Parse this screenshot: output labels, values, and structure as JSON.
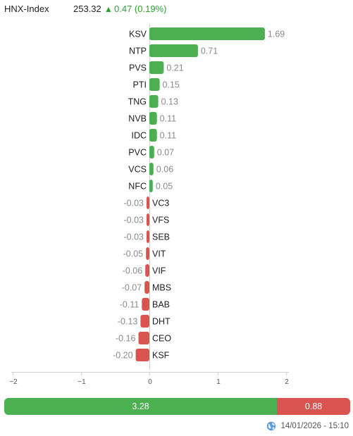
{
  "header": {
    "index_name": "HNX-Index",
    "index_value": "253.32",
    "arrow": "▲",
    "change": "0.47 (0.19%)"
  },
  "colors": {
    "positive": "#4caf50",
    "negative": "#d9534f"
  },
  "chart_data": {
    "type": "bar",
    "orientation": "horizontal",
    "categories": [
      "KSV",
      "NTP",
      "PVS",
      "PTI",
      "TNG",
      "NVB",
      "IDC",
      "PVC",
      "VCS",
      "NFC",
      "VC3",
      "VFS",
      "SEB",
      "VIT",
      "VIF",
      "MBS",
      "BAB",
      "DHT",
      "CEO",
      "KSF"
    ],
    "values": [
      1.69,
      0.71,
      0.21,
      0.15,
      0.13,
      0.11,
      0.11,
      0.07,
      0.06,
      0.05,
      -0.03,
      -0.03,
      -0.03,
      -0.05,
      -0.06,
      -0.07,
      -0.11,
      -0.13,
      -0.16,
      -0.2
    ],
    "value_labels": [
      "1.69",
      "0.71",
      "0.21",
      "0.15",
      "0.13",
      "0.11",
      "0.11",
      "0.07",
      "0.06",
      "0.05",
      "-0.03",
      "-0.03",
      "-0.03",
      "-0.05",
      "-0.06",
      "-0.07",
      "-0.11",
      "-0.13",
      "-0.16",
      "-0.20"
    ],
    "xlim": [
      -2,
      2
    ],
    "ticks": [
      -2,
      -1,
      0,
      1,
      2
    ],
    "tick_labels": [
      "−2",
      "−1",
      "0",
      "1",
      "2"
    ],
    "grid": false
  },
  "summary": {
    "up_value": 3.28,
    "up_label": "3.28",
    "down_value": 0.88,
    "down_label": "0.88"
  },
  "timestamp": "14/01/2026 - 15:10"
}
